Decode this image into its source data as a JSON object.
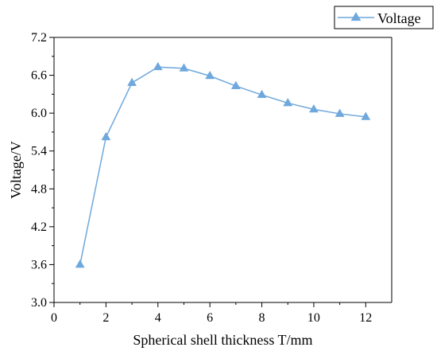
{
  "chart_data": {
    "type": "line",
    "title": "",
    "xlabel": "Spherical shell thickness T/mm",
    "ylabel": "Voltage/V",
    "xlim": [
      0,
      13
    ],
    "ylim": [
      3.0,
      7.2
    ],
    "xticks": [
      0,
      2,
      4,
      6,
      8,
      10,
      12
    ],
    "yticks": [
      3.0,
      3.6,
      4.2,
      4.8,
      5.4,
      6.0,
      6.6,
      7.2
    ],
    "xtick_labels": [
      "0",
      "2",
      "4",
      "6",
      "8",
      "10",
      "12"
    ],
    "ytick_labels": [
      "3.0",
      "3.6",
      "4.2",
      "4.8",
      "5.4",
      "6.0",
      "6.6",
      "7.2"
    ],
    "grid": false,
    "legend_position": "top-right",
    "series": [
      {
        "name": "Voltage",
        "color": "#6fa8dc",
        "marker": "triangle",
        "x": [
          1,
          2,
          3,
          4,
          5,
          6,
          7,
          8,
          9,
          10,
          11,
          12
        ],
        "y": [
          3.6,
          5.62,
          6.48,
          6.73,
          6.71,
          6.59,
          6.43,
          6.29,
          6.16,
          6.06,
          5.99,
          5.94
        ]
      }
    ]
  }
}
